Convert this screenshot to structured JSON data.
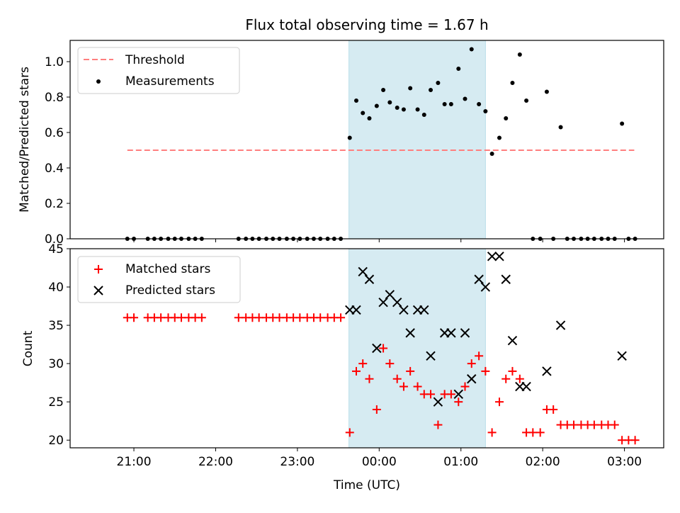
{
  "chart_data": [
    {
      "type": "scatter",
      "title": "Flux total observing time = 1.67 h",
      "ylabel": "Matched/Predicted stars",
      "xlabel": "",
      "x_unit": "hours UTC (offset from 00:00)",
      "xlim": [
        -3.78,
        3.48
      ],
      "ylim": [
        0,
        1.12
      ],
      "y_ticks": [
        "0.0",
        "0.2",
        "0.4",
        "0.6",
        "0.8",
        "1.0"
      ],
      "shaded_span": [
        -0.37,
        1.3
      ],
      "legend": {
        "placement": "top-left",
        "entries": [
          "Threshold",
          "Measurements"
        ]
      },
      "threshold": {
        "name": "Threshold",
        "value": 0.5,
        "x_range": [
          -3.08,
          3.12
        ],
        "color": "#ff7f7f"
      },
      "series": [
        {
          "name": "Measurements",
          "color": "#000000",
          "points": [
            [
              -3.08,
              0.0
            ],
            [
              -3.0,
              0.0
            ],
            [
              -2.83,
              0.0
            ],
            [
              -2.75,
              0.0
            ],
            [
              -2.67,
              0.0
            ],
            [
              -2.58,
              0.0
            ],
            [
              -2.5,
              0.0
            ],
            [
              -2.42,
              0.0
            ],
            [
              -2.33,
              0.0
            ],
            [
              -2.25,
              0.0
            ],
            [
              -2.17,
              0.0
            ],
            [
              -1.72,
              0.0
            ],
            [
              -1.63,
              0.0
            ],
            [
              -1.55,
              0.0
            ],
            [
              -1.47,
              0.0
            ],
            [
              -1.38,
              0.0
            ],
            [
              -1.3,
              0.0
            ],
            [
              -1.22,
              0.0
            ],
            [
              -1.13,
              0.0
            ],
            [
              -1.05,
              0.0
            ],
            [
              -0.97,
              0.0
            ],
            [
              -0.88,
              0.0
            ],
            [
              -0.8,
              0.0
            ],
            [
              -0.72,
              0.0
            ],
            [
              -0.63,
              0.0
            ],
            [
              -0.55,
              0.0
            ],
            [
              -0.47,
              0.0
            ],
            [
              -0.36,
              0.57
            ],
            [
              -0.28,
              0.78
            ],
            [
              -0.2,
              0.71
            ],
            [
              -0.12,
              0.68
            ],
            [
              -0.03,
              0.75
            ],
            [
              0.05,
              0.84
            ],
            [
              0.13,
              0.77
            ],
            [
              0.22,
              0.74
            ],
            [
              0.3,
              0.73
            ],
            [
              0.38,
              0.85
            ],
            [
              0.47,
              0.73
            ],
            [
              0.55,
              0.7
            ],
            [
              0.63,
              0.84
            ],
            [
              0.72,
              0.88
            ],
            [
              0.8,
              0.76
            ],
            [
              0.88,
              0.76
            ],
            [
              0.97,
              0.96
            ],
            [
              1.05,
              0.79
            ],
            [
              1.13,
              1.07
            ],
            [
              1.22,
              0.76
            ],
            [
              1.3,
              0.72
            ],
            [
              1.38,
              0.48
            ],
            [
              1.47,
              0.57
            ],
            [
              1.55,
              0.68
            ],
            [
              1.63,
              0.88
            ],
            [
              1.72,
              1.04
            ],
            [
              1.8,
              0.78
            ],
            [
              1.88,
              0.0
            ],
            [
              1.97,
              0.0
            ],
            [
              2.05,
              0.83
            ],
            [
              2.13,
              0.0
            ],
            [
              2.22,
              0.63
            ],
            [
              2.3,
              0.0
            ],
            [
              2.38,
              0.0
            ],
            [
              2.47,
              0.0
            ],
            [
              2.55,
              0.0
            ],
            [
              2.63,
              0.0
            ],
            [
              2.72,
              0.0
            ],
            [
              2.8,
              0.0
            ],
            [
              2.88,
              0.0
            ],
            [
              2.97,
              0.65
            ],
            [
              3.05,
              0.0
            ],
            [
              3.13,
              0.0
            ]
          ]
        }
      ]
    },
    {
      "type": "scatter",
      "title": "",
      "ylabel": "Count",
      "xlabel": "Time (UTC)",
      "x_unit": "hours UTC (offset from 00:00)",
      "xlim": [
        -3.78,
        3.48
      ],
      "ylim": [
        19,
        45
      ],
      "y_ticks": [
        "20",
        "25",
        "30",
        "35",
        "40",
        "45"
      ],
      "x_ticks": [
        {
          "value": -3,
          "label": "21:00"
        },
        {
          "value": -2,
          "label": "22:00"
        },
        {
          "value": -1,
          "label": "23:00"
        },
        {
          "value": 0,
          "label": "00:00"
        },
        {
          "value": 1,
          "label": "01:00"
        },
        {
          "value": 2,
          "label": "02:00"
        },
        {
          "value": 3,
          "label": "03:00"
        }
      ],
      "shaded_span": [
        -0.37,
        1.3
      ],
      "legend": {
        "placement": "top-left",
        "entries": [
          "Matched stars",
          "Predicted stars"
        ]
      },
      "series": [
        {
          "name": "Matched stars",
          "marker": "plus",
          "color": "#ff0000",
          "points": [
            [
              -3.08,
              36
            ],
            [
              -3.0,
              36
            ],
            [
              -2.83,
              36
            ],
            [
              -2.75,
              36
            ],
            [
              -2.67,
              36
            ],
            [
              -2.58,
              36
            ],
            [
              -2.5,
              36
            ],
            [
              -2.42,
              36
            ],
            [
              -2.33,
              36
            ],
            [
              -2.25,
              36
            ],
            [
              -2.17,
              36
            ],
            [
              -1.72,
              36
            ],
            [
              -1.63,
              36
            ],
            [
              -1.55,
              36
            ],
            [
              -1.47,
              36
            ],
            [
              -1.38,
              36
            ],
            [
              -1.3,
              36
            ],
            [
              -1.22,
              36
            ],
            [
              -1.13,
              36
            ],
            [
              -1.05,
              36
            ],
            [
              -0.97,
              36
            ],
            [
              -0.88,
              36
            ],
            [
              -0.8,
              36
            ],
            [
              -0.72,
              36
            ],
            [
              -0.63,
              36
            ],
            [
              -0.55,
              36
            ],
            [
              -0.47,
              36
            ],
            [
              -0.36,
              21
            ],
            [
              -0.28,
              29
            ],
            [
              -0.2,
              30
            ],
            [
              -0.12,
              28
            ],
            [
              -0.03,
              24
            ],
            [
              0.05,
              32
            ],
            [
              0.13,
              30
            ],
            [
              0.22,
              28
            ],
            [
              0.3,
              27
            ],
            [
              0.38,
              29
            ],
            [
              0.47,
              27
            ],
            [
              0.55,
              26
            ],
            [
              0.63,
              26
            ],
            [
              0.72,
              22
            ],
            [
              0.8,
              26
            ],
            [
              0.88,
              26
            ],
            [
              0.97,
              25
            ],
            [
              1.05,
              27
            ],
            [
              1.13,
              30
            ],
            [
              1.22,
              31
            ],
            [
              1.3,
              29
            ],
            [
              1.38,
              21
            ],
            [
              1.47,
              25
            ],
            [
              1.55,
              28
            ],
            [
              1.63,
              29
            ],
            [
              1.72,
              28
            ],
            [
              1.8,
              21
            ],
            [
              1.88,
              21
            ],
            [
              1.97,
              21
            ],
            [
              2.05,
              24
            ],
            [
              2.13,
              24
            ],
            [
              2.22,
              22
            ],
            [
              2.3,
              22
            ],
            [
              2.38,
              22
            ],
            [
              2.47,
              22
            ],
            [
              2.55,
              22
            ],
            [
              2.63,
              22
            ],
            [
              2.72,
              22
            ],
            [
              2.8,
              22
            ],
            [
              2.88,
              22
            ],
            [
              2.97,
              20
            ],
            [
              3.05,
              20
            ],
            [
              3.13,
              20
            ]
          ]
        },
        {
          "name": "Predicted stars",
          "marker": "x",
          "color": "#000000",
          "points": [
            [
              -0.36,
              37
            ],
            [
              -0.28,
              37
            ],
            [
              -0.2,
              42
            ],
            [
              -0.12,
              41
            ],
            [
              -0.03,
              32
            ],
            [
              0.05,
              38
            ],
            [
              0.13,
              39
            ],
            [
              0.22,
              38
            ],
            [
              0.3,
              37
            ],
            [
              0.38,
              34
            ],
            [
              0.47,
              37
            ],
            [
              0.55,
              37
            ],
            [
              0.63,
              31
            ],
            [
              0.72,
              25
            ],
            [
              0.8,
              34
            ],
            [
              0.88,
              34
            ],
            [
              0.97,
              26
            ],
            [
              1.05,
              34
            ],
            [
              1.13,
              28
            ],
            [
              1.22,
              41
            ],
            [
              1.3,
              40
            ],
            [
              1.38,
              44
            ],
            [
              1.47,
              44
            ],
            [
              1.55,
              41
            ],
            [
              1.63,
              33
            ],
            [
              1.72,
              27
            ],
            [
              1.8,
              27
            ],
            [
              2.05,
              29
            ],
            [
              2.22,
              35
            ],
            [
              2.97,
              31
            ]
          ]
        }
      ]
    }
  ]
}
